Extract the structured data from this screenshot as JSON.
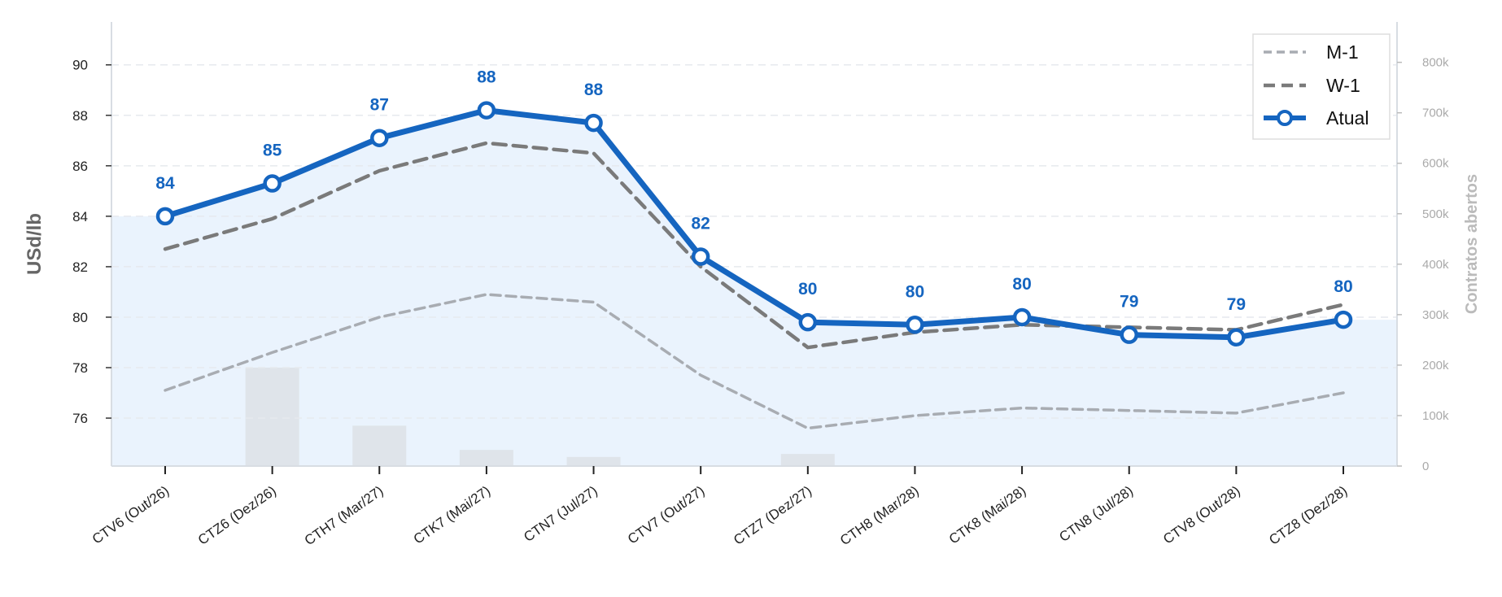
{
  "chart_data": {
    "type": "line",
    "categories": [
      "CTV6 (Out/26)",
      "CTZ6 (Dez/26)",
      "CTH7 (Mar/27)",
      "CTK7 (Mai/27)",
      "CTN7 (Jul/27)",
      "CTV7 (Out/27)",
      "CTZ7 (Dez/27)",
      "CTH8 (Mar/28)",
      "CTK8 (Mai/28)",
      "CTN8 (Jul/28)",
      "CTV8 (Out/28)",
      "CTZ8 (Dez/28)"
    ],
    "series": [
      {
        "name": "M-1",
        "style": "dashed",
        "color": "#a8acb2",
        "values": [
          77.1,
          78.6,
          80.0,
          80.9,
          80.6,
          77.7,
          75.6,
          76.1,
          76.4,
          76.3,
          76.2,
          77.0
        ]
      },
      {
        "name": "W-1",
        "style": "dashed",
        "color": "#7a7a7a",
        "values": [
          82.7,
          83.9,
          85.8,
          86.9,
          86.5,
          82.0,
          78.8,
          79.4,
          79.7,
          79.6,
          79.5,
          80.5
        ]
      },
      {
        "name": "Atual",
        "style": "solid-markers",
        "color": "#1565c0",
        "values": [
          84.0,
          85.3,
          87.1,
          88.2,
          87.7,
          82.4,
          79.8,
          79.7,
          80.0,
          79.3,
          79.2,
          79.9
        ]
      }
    ],
    "data_labels": [
      "84",
      "85",
      "87",
      "88",
      "88",
      "82",
      "80",
      "80",
      "80",
      "79",
      "79",
      "80"
    ],
    "bars": {
      "name": "Contratos abertos",
      "color": "#dfe4ea",
      "values": [
        0,
        195000,
        80000,
        32000,
        18000,
        0,
        24000,
        0,
        0,
        0,
        0,
        0
      ]
    },
    "ylabel": "USd/lb",
    "ylabel_right": "Contratos abertos",
    "ylim": [
      74.1,
      91.7
    ],
    "yticks": [
      76,
      78,
      80,
      82,
      84,
      86,
      88,
      90
    ],
    "ylim_right": [
      0,
      880000
    ],
    "yticks_right": [
      0,
      100000,
      200000,
      300000,
      400000,
      500000,
      600000,
      700000,
      800000
    ],
    "yticks_right_labels": [
      "0",
      "100k",
      "200k",
      "300k",
      "400k",
      "500k",
      "600k",
      "700k",
      "800k"
    ],
    "shaded_area_up_to": 84.0,
    "shaded_color": "#eaf3fd",
    "grid": "horizontal dashed",
    "legend_position": "top-right"
  }
}
